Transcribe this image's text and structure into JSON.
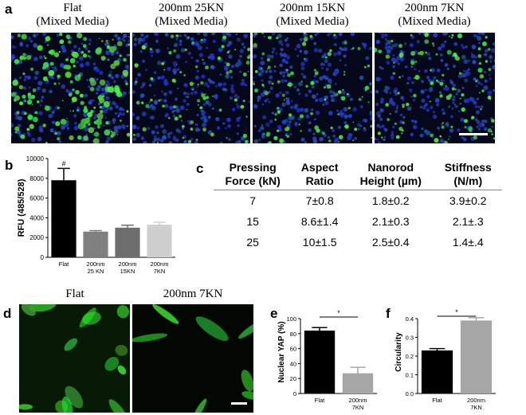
{
  "panel_a": {
    "letter": "a",
    "images": [
      {
        "line1": "Flat",
        "line2": "(Mixed Media)",
        "density": 1.0
      },
      {
        "line1": "200nm 25KN",
        "line2": "(Mixed Media)",
        "density": 0.45
      },
      {
        "line1": "200nm 15KN",
        "line2": "(Mixed Media)",
        "density": 0.55
      },
      {
        "line1": "200nm 7KN",
        "line2": "(Mixed Media)",
        "density": 0.6
      }
    ]
  },
  "panel_b": {
    "letter": "b",
    "chart_data": {
      "type": "bar",
      "categories": [
        "Flat",
        "200nm 25 KN",
        "200nm 15KN",
        "200nm 7KN"
      ],
      "values": [
        7800,
        2600,
        3000,
        3300
      ],
      "errors": [
        1200,
        100,
        250,
        250
      ],
      "colors": [
        "#000000",
        "#808080",
        "#6e6e6e",
        "#cfcfcf"
      ],
      "ylabel": "RFU (485/528)",
      "ylim": [
        0,
        10000
      ],
      "yticks": [
        "0",
        "2000",
        "4000",
        "6000",
        "8000",
        "10000"
      ],
      "annotation": "#"
    }
  },
  "panel_c": {
    "letter": "c",
    "headers": [
      [
        "Pressing",
        "Force (kN)"
      ],
      [
        "Aspect",
        "Ratio"
      ],
      [
        "Nanorod",
        "Height (µm)"
      ],
      [
        "Stiffness",
        "(N/m)"
      ]
    ],
    "rows": [
      [
        "7",
        "7±0.8",
        "1.8±0.2",
        "3.9±0.2"
      ],
      [
        "15",
        "8.6±1.4",
        "2.1±0.3",
        "2.1±.3"
      ],
      [
        "25",
        "10±1.5",
        "2.5±0.4",
        "1.4±.4"
      ]
    ]
  },
  "panel_d": {
    "letter": "d",
    "labels": [
      "Flat",
      "200nm 7KN"
    ]
  },
  "panel_e": {
    "letter": "e",
    "chart_data": {
      "type": "bar",
      "categories": [
        "Flat",
        "200nm 7KN"
      ],
      "values": [
        84,
        27
      ],
      "errors": [
        4,
        8
      ],
      "colors": [
        "#000000",
        "#a6a6a6"
      ],
      "ylabel": "Nuclear YAP (%)",
      "ylim": [
        0,
        100
      ],
      "yticks": [
        "0",
        "20",
        "40",
        "60",
        "80",
        "100"
      ],
      "annotation": "*"
    }
  },
  "panel_f": {
    "letter": "f",
    "chart_data": {
      "type": "bar",
      "categories": [
        "Flat",
        "200nm 7KN"
      ],
      "values": [
        0.23,
        0.39
      ],
      "errors": [
        0.01,
        0.015
      ],
      "colors": [
        "#000000",
        "#a6a6a6"
      ],
      "ylabel": "Circularity",
      "ylim": [
        0,
        0.4
      ],
      "yticks": [
        "0.0",
        "0.1",
        "0.2",
        "0.3",
        "0.4"
      ],
      "annotation": "*"
    }
  }
}
